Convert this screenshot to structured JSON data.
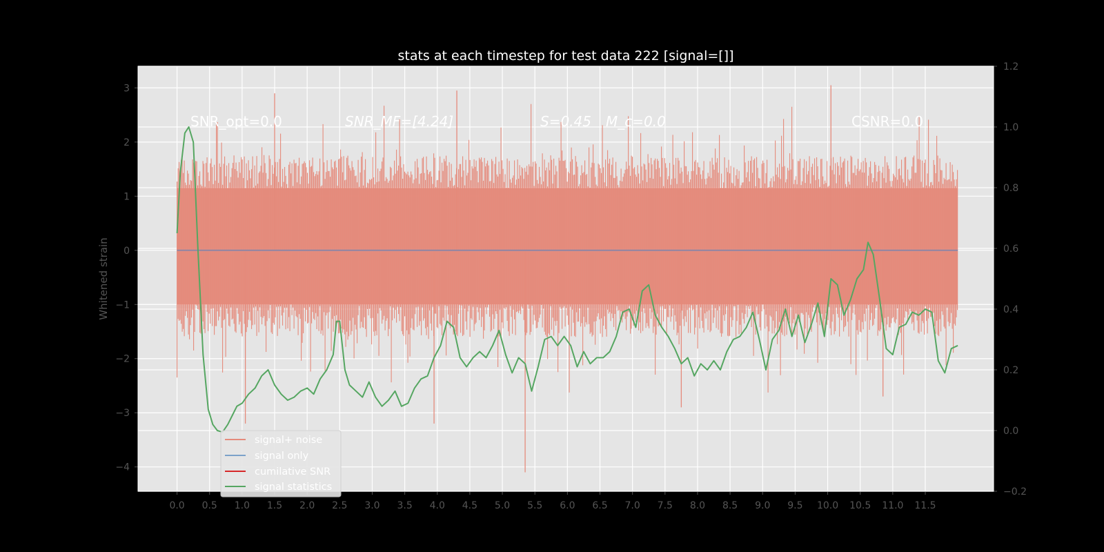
{
  "chart_data": {
    "type": "line",
    "title": "stats at each timestep for test data 222 [signal=[]]",
    "ylabel": "Whitened strain",
    "xlabel": "",
    "xlim": [
      -0.6,
      12.55
    ],
    "ylim": [
      -4.45,
      3.4
    ],
    "y2lim": [
      -0.2,
      1.2
    ],
    "x_ticks": [
      0.0,
      0.5,
      1.0,
      1.5,
      2.0,
      2.5,
      3.0,
      3.5,
      4.0,
      4.5,
      5.0,
      5.5,
      6.0,
      6.5,
      7.0,
      7.5,
      8.0,
      8.5,
      9.0,
      9.5,
      10.0,
      10.5,
      11.0,
      11.5
    ],
    "x_tick_labels": [
      "0.0",
      "0.5",
      "1.0",
      "1.5",
      "2.0",
      "2.5",
      "3.0",
      "3.5",
      "4.0",
      "4.5",
      "5.0",
      "5.5",
      "6.0",
      "6.5",
      "7.0",
      "7.5",
      "8.0",
      "8.5",
      "9.0",
      "9.5",
      "10.0",
      "10.5",
      "11.0",
      "11.5"
    ],
    "y_ticks": [
      3,
      2,
      1,
      0,
      -1,
      -2,
      -3,
      -4
    ],
    "y_tick_labels": [
      "3",
      "2",
      "1",
      "0",
      "−1",
      "−2",
      "−3",
      "−4"
    ],
    "y2_ticks": [
      1.2,
      1.0,
      0.8,
      0.6,
      0.4,
      0.2,
      0.0,
      -0.2
    ],
    "y2_tick_labels": [
      "1.2",
      "1.0",
      "0.8",
      "0.6",
      "0.4",
      "0.2",
      "0.0",
      "−0.2"
    ],
    "grid": true,
    "legend_placement": "lower-left",
    "annotations": {
      "snr_opt": "SNR_opt=0.0",
      "snr_mf": "SNR_MF=[4.24]",
      "s_value": "S=0.45",
      "mc_value": "M_c=0.0",
      "csnr": "CSNR=0.0"
    },
    "series": [
      {
        "name": "signal+ noise",
        "color": "#e58a7b",
        "x_range": [
          0.0,
          12.0
        ],
        "envelope_y": [
          -1.0,
          1.15
        ],
        "peak_max_y": 3.05,
        "peak_min_y": -4.1
      },
      {
        "name": "signal only",
        "color": "#7ba1c9",
        "x_range": [
          0.0,
          12.0
        ],
        "y": 0.0
      },
      {
        "name": "cumilative SNR",
        "color": "#d62728",
        "x": [
          0.0,
          12.0
        ],
        "y": [
          0.0,
          0.0
        ]
      },
      {
        "name": "signal statistics",
        "color": "#55a661",
        "axis": "right",
        "x": [
          0.0,
          0.05,
          0.12,
          0.18,
          0.25,
          0.32,
          0.4,
          0.48,
          0.55,
          0.62,
          0.7,
          0.78,
          0.85,
          0.92,
          1.0,
          1.1,
          1.2,
          1.3,
          1.4,
          1.5,
          1.6,
          1.7,
          1.8,
          1.9,
          2.0,
          2.1,
          2.2,
          2.3,
          2.4,
          2.45,
          2.5,
          2.58,
          2.65,
          2.75,
          2.85,
          2.95,
          3.05,
          3.15,
          3.25,
          3.35,
          3.45,
          3.55,
          3.65,
          3.75,
          3.85,
          3.95,
          4.05,
          4.15,
          4.25,
          4.35,
          4.45,
          4.55,
          4.65,
          4.75,
          4.85,
          4.95,
          5.05,
          5.15,
          5.25,
          5.35,
          5.45,
          5.55,
          5.65,
          5.75,
          5.85,
          5.95,
          6.05,
          6.15,
          6.25,
          6.35,
          6.45,
          6.55,
          6.65,
          6.75,
          6.85,
          6.95,
          7.05,
          7.15,
          7.25,
          7.35,
          7.45,
          7.55,
          7.65,
          7.75,
          7.85,
          7.95,
          8.05,
          8.15,
          8.25,
          8.35,
          8.45,
          8.55,
          8.65,
          8.75,
          8.85,
          8.95,
          9.05,
          9.15,
          9.25,
          9.35,
          9.45,
          9.55,
          9.65,
          9.75,
          9.85,
          9.95,
          10.05,
          10.15,
          10.25,
          10.35,
          10.45,
          10.55,
          10.62,
          10.7,
          10.8,
          10.9,
          11.0,
          11.1,
          11.2,
          11.3,
          11.4,
          11.5,
          11.6,
          11.7,
          11.8,
          11.9,
          12.0
        ],
        "y": [
          0.65,
          0.85,
          0.98,
          1.0,
          0.95,
          0.6,
          0.25,
          0.07,
          0.02,
          0.0,
          -0.005,
          0.02,
          0.05,
          0.08,
          0.09,
          0.12,
          0.14,
          0.18,
          0.2,
          0.15,
          0.12,
          0.1,
          0.11,
          0.13,
          0.14,
          0.12,
          0.17,
          0.2,
          0.25,
          0.36,
          0.36,
          0.2,
          0.15,
          0.13,
          0.11,
          0.16,
          0.11,
          0.08,
          0.1,
          0.13,
          0.08,
          0.09,
          0.14,
          0.17,
          0.18,
          0.24,
          0.28,
          0.36,
          0.34,
          0.24,
          0.21,
          0.24,
          0.26,
          0.24,
          0.28,
          0.33,
          0.25,
          0.19,
          0.24,
          0.22,
          0.13,
          0.21,
          0.3,
          0.31,
          0.28,
          0.31,
          0.28,
          0.21,
          0.26,
          0.22,
          0.24,
          0.24,
          0.26,
          0.31,
          0.39,
          0.4,
          0.34,
          0.46,
          0.48,
          0.38,
          0.34,
          0.31,
          0.27,
          0.22,
          0.24,
          0.18,
          0.22,
          0.2,
          0.23,
          0.2,
          0.26,
          0.3,
          0.31,
          0.34,
          0.39,
          0.3,
          0.2,
          0.3,
          0.33,
          0.4,
          0.31,
          0.38,
          0.29,
          0.35,
          0.42,
          0.31,
          0.5,
          0.48,
          0.38,
          0.43,
          0.5,
          0.53,
          0.62,
          0.58,
          0.43,
          0.27,
          0.25,
          0.34,
          0.35,
          0.39,
          0.38,
          0.4,
          0.39,
          0.23,
          0.19,
          0.27,
          0.28
        ]
      }
    ]
  }
}
